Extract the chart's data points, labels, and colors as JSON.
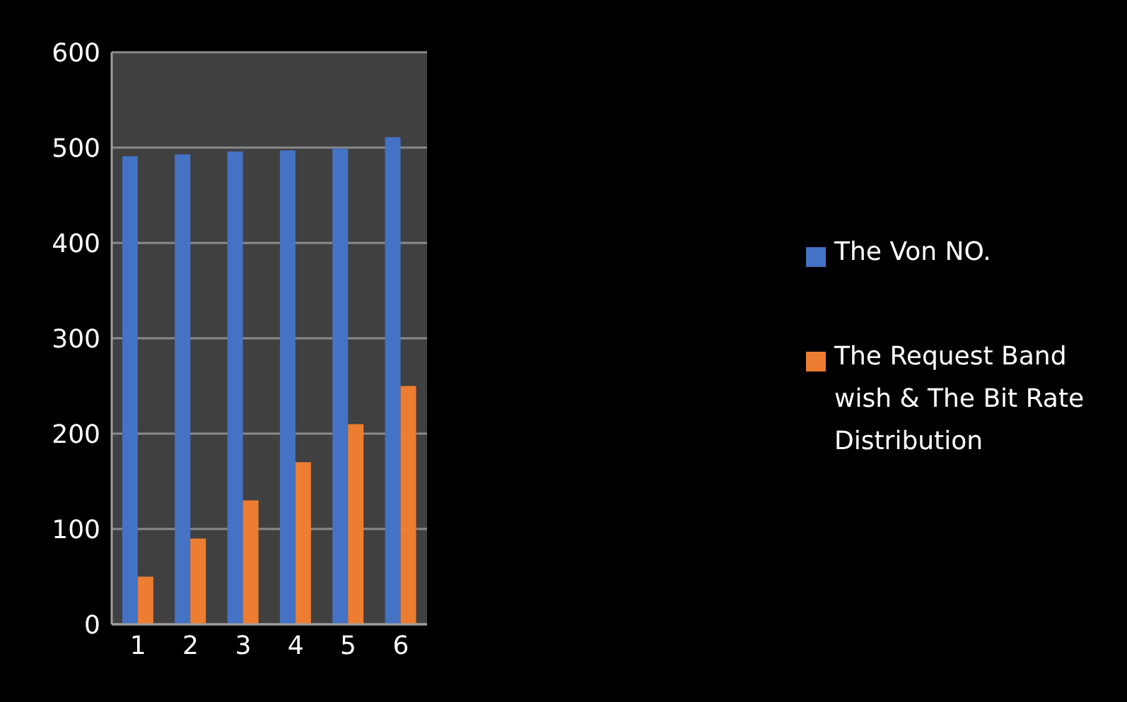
{
  "chart_data": {
    "type": "bar",
    "categories": [
      "1",
      "2",
      "3",
      "4",
      "5",
      "6"
    ],
    "series": [
      {
        "name": "The Von NO.",
        "color": "#4472c4",
        "values": [
          491,
          493,
          496,
          497,
          499,
          511
        ]
      },
      {
        "name": "The Request Band wish & The Bit Rate Distribution",
        "color": "#ed7d31",
        "values": [
          50,
          90,
          130,
          170,
          210,
          250
        ]
      }
    ],
    "ylim": [
      0,
      600
    ],
    "yticks": [
      0,
      100,
      200,
      300,
      400,
      500,
      600
    ],
    "grid": "y",
    "legend": "right"
  }
}
